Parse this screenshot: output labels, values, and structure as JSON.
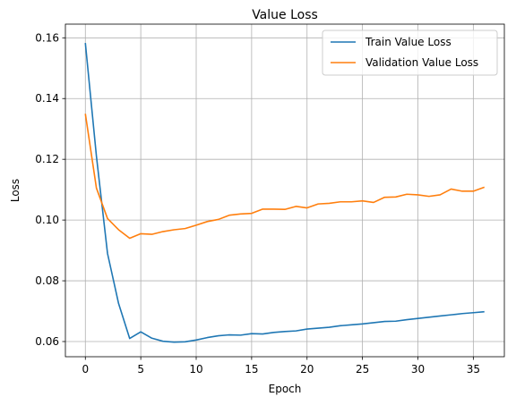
{
  "chart_data": {
    "type": "line",
    "title": "Value Loss",
    "xlabel": "Epoch",
    "ylabel": "Loss",
    "xlim": [
      -1.8,
      37.8
    ],
    "ylim": [
      0.055,
      0.1645
    ],
    "xticks": [
      0,
      5,
      10,
      15,
      20,
      25,
      30,
      35
    ],
    "yticks": [
      0.06,
      0.08,
      0.1,
      0.12,
      0.14,
      0.16
    ],
    "ytick_labels": [
      "0.06",
      "0.08",
      "0.10",
      "0.12",
      "0.14",
      "0.16"
    ],
    "grid": true,
    "legend_placement": "top-right",
    "x": [
      0,
      1,
      2,
      3,
      4,
      5,
      6,
      7,
      8,
      9,
      10,
      11,
      12,
      13,
      14,
      15,
      16,
      17,
      18,
      19,
      20,
      21,
      22,
      23,
      24,
      25,
      26,
      27,
      28,
      29,
      30,
      31,
      32,
      33,
      34,
      35,
      36
    ],
    "series": [
      {
        "name": "Train Value Loss",
        "color": "#1f77b4",
        "values": [
          0.1583,
          0.121,
          0.089,
          0.0725,
          0.061,
          0.0632,
          0.0611,
          0.0601,
          0.0598,
          0.0599,
          0.0605,
          0.0613,
          0.0619,
          0.0622,
          0.0621,
          0.0626,
          0.0625,
          0.063,
          0.0633,
          0.0635,
          0.0641,
          0.0644,
          0.0647,
          0.0652,
          0.0655,
          0.0658,
          0.0662,
          0.0666,
          0.0667,
          0.0672,
          0.0676,
          0.068,
          0.0684,
          0.0688,
          0.0692,
          0.0695,
          0.0698
        ]
      },
      {
        "name": "Validation Value Loss",
        "color": "#ff7f0e",
        "values": [
          0.135,
          0.1105,
          0.1005,
          0.0968,
          0.094,
          0.0955,
          0.0953,
          0.0962,
          0.0968,
          0.0972,
          0.0983,
          0.0995,
          0.1002,
          0.1016,
          0.102,
          0.1022,
          0.1036,
          0.1036,
          0.1035,
          0.1045,
          0.104,
          0.1053,
          0.1055,
          0.106,
          0.106,
          0.1063,
          0.1058,
          0.1075,
          0.1076,
          0.1085,
          0.1083,
          0.1078,
          0.1083,
          0.1102,
          0.1095,
          0.1095,
          0.1108
        ]
      }
    ]
  }
}
